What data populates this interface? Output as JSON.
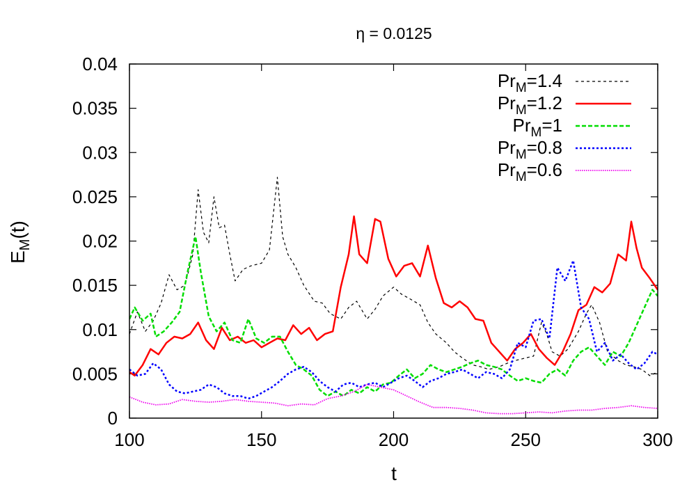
{
  "chart_data": {
    "type": "line",
    "title": "η = 0.0125",
    "xlabel": "t",
    "ylabel": {
      "base": "E",
      "sub": "M",
      "suffix": "(t)"
    },
    "xlim": [
      100,
      300
    ],
    "ylim": [
      0,
      0.04
    ],
    "xticks": [
      100,
      150,
      200,
      250,
      300
    ],
    "yticks": [
      0,
      0.005,
      0.01,
      0.015,
      0.02,
      0.025,
      0.03,
      0.035,
      0.04
    ],
    "xtick_labels": [
      "100",
      "150",
      "200",
      "250",
      "300"
    ],
    "ytick_labels": [
      "0",
      "0.005",
      "0.01",
      "0.015",
      "0.02",
      "0.025",
      "0.03",
      "0.035",
      "0.04"
    ],
    "grid": false,
    "legend_position": "top-right",
    "series": [
      {
        "name": "Pr_M=1.4",
        "legend": {
          "base": "Pr",
          "sub": "M",
          "suffix": "=1.4"
        },
        "color": "#000000",
        "dash": "short-dash",
        "x": [
          100,
          103,
          106,
          109,
          112,
          115,
          118,
          121,
          124,
          126,
          128,
          130,
          132,
          134,
          136,
          138,
          140,
          143,
          146,
          150,
          153,
          156,
          158,
          160,
          163,
          166,
          170,
          173,
          176,
          180,
          183,
          186,
          190,
          193,
          196,
          200,
          203,
          206,
          210,
          213,
          216,
          220,
          223,
          226,
          230,
          233,
          236,
          240,
          243,
          246,
          250,
          253,
          256,
          258,
          260,
          263,
          266,
          270,
          273,
          275,
          278,
          281,
          285,
          288,
          291,
          294,
          297,
          300
        ],
        "y": [
          0.0095,
          0.012,
          0.0098,
          0.011,
          0.013,
          0.0162,
          0.0145,
          0.015,
          0.0185,
          0.0258,
          0.021,
          0.0198,
          0.025,
          0.0215,
          0.0218,
          0.0185,
          0.0155,
          0.0168,
          0.0172,
          0.0175,
          0.019,
          0.0272,
          0.0205,
          0.0185,
          0.017,
          0.015,
          0.0132,
          0.013,
          0.0118,
          0.0112,
          0.0125,
          0.0132,
          0.0112,
          0.0123,
          0.0138,
          0.0148,
          0.014,
          0.0135,
          0.0128,
          0.0108,
          0.0095,
          0.0085,
          0.0075,
          0.0068,
          0.006,
          0.0058,
          0.0055,
          0.0058,
          0.0062,
          0.0065,
          0.0068,
          0.007,
          0.0108,
          0.0095,
          0.0075,
          0.007,
          0.0078,
          0.0098,
          0.0118,
          0.0128,
          0.0108,
          0.0075,
          0.0065,
          0.006,
          0.0058,
          0.0055,
          0.0048,
          0.0052
        ]
      },
      {
        "name": "Pr_M=1.2",
        "legend": {
          "base": "Pr",
          "sub": "M",
          "suffix": "=1.2"
        },
        "color": "#ff0000",
        "dash": "solid",
        "x": [
          100,
          102,
          105,
          108,
          111,
          114,
          117,
          120,
          123,
          126,
          129,
          132,
          135,
          138,
          141,
          144,
          147,
          150,
          153,
          156,
          159,
          162,
          165,
          168,
          171,
          174,
          177,
          180,
          183,
          185,
          187,
          190,
          193,
          195,
          198,
          201,
          204,
          207,
          210,
          213,
          216,
          219,
          222,
          225,
          228,
          231,
          234,
          237,
          240,
          243,
          246,
          249,
          252,
          255,
          258,
          261,
          264,
          267,
          270,
          273,
          276,
          279,
          282,
          285,
          288,
          290,
          292,
          294,
          297,
          300
        ],
        "y": [
          0.0052,
          0.0048,
          0.006,
          0.0078,
          0.0072,
          0.0085,
          0.0092,
          0.009,
          0.0095,
          0.0108,
          0.0088,
          0.0078,
          0.0102,
          0.0088,
          0.0092,
          0.0085,
          0.0088,
          0.008,
          0.0085,
          0.009,
          0.0088,
          0.0105,
          0.0095,
          0.0102,
          0.0088,
          0.0095,
          0.0098,
          0.0148,
          0.0185,
          0.0228,
          0.0185,
          0.0175,
          0.0225,
          0.0222,
          0.018,
          0.016,
          0.0172,
          0.0175,
          0.016,
          0.0195,
          0.0158,
          0.013,
          0.0125,
          0.0132,
          0.0125,
          0.0112,
          0.011,
          0.0085,
          0.0075,
          0.0065,
          0.0078,
          0.0085,
          0.0095,
          0.0078,
          0.0068,
          0.006,
          0.0075,
          0.0095,
          0.0122,
          0.0128,
          0.0148,
          0.0142,
          0.0152,
          0.0185,
          0.0178,
          0.0222,
          0.0192,
          0.017,
          0.0158,
          0.0145
        ]
      },
      {
        "name": "Pr_M=1",
        "legend": {
          "base": "Pr",
          "sub": "M",
          "suffix": "=1"
        },
        "color": "#00dd00",
        "dash": "dash",
        "x": [
          100,
          102,
          105,
          108,
          110,
          113,
          116,
          119,
          122,
          125,
          127,
          130,
          133,
          136,
          139,
          142,
          145,
          148,
          151,
          154,
          157,
          160,
          163,
          166,
          169,
          172,
          175,
          178,
          181,
          184,
          187,
          190,
          193,
          196,
          199,
          202,
          205,
          208,
          211,
          214,
          217,
          220,
          223,
          226,
          229,
          232,
          235,
          238,
          241,
          244,
          247,
          250,
          253,
          256,
          259,
          262,
          265,
          268,
          271,
          274,
          277,
          280,
          283,
          286,
          289,
          292,
          295,
          298,
          300
        ],
        "y": [
          0.0112,
          0.0125,
          0.011,
          0.0118,
          0.0092,
          0.0098,
          0.0108,
          0.012,
          0.0165,
          0.0205,
          0.0165,
          0.0115,
          0.0098,
          0.0108,
          0.0088,
          0.0085,
          0.0112,
          0.009,
          0.0085,
          0.0092,
          0.0092,
          0.0075,
          0.006,
          0.0055,
          0.0048,
          0.0032,
          0.0025,
          0.003,
          0.0025,
          0.0032,
          0.0028,
          0.0035,
          0.003,
          0.0038,
          0.004,
          0.0048,
          0.0055,
          0.0045,
          0.005,
          0.006,
          0.0055,
          0.0052,
          0.0055,
          0.0058,
          0.0062,
          0.0065,
          0.006,
          0.0058,
          0.0055,
          0.0048,
          0.0042,
          0.0045,
          0.0042,
          0.004,
          0.005,
          0.0055,
          0.0048,
          0.0065,
          0.0075,
          0.008,
          0.007,
          0.006,
          0.0075,
          0.007,
          0.0085,
          0.0105,
          0.0125,
          0.0145,
          0.0138
        ]
      },
      {
        "name": "Pr_M=0.8",
        "legend": {
          "base": "Pr",
          "sub": "M",
          "suffix": "=0.8"
        },
        "color": "#0000ff",
        "dash": "dot",
        "x": [
          100,
          103,
          106,
          109,
          112,
          115,
          118,
          121,
          124,
          127,
          130,
          133,
          136,
          139,
          142,
          145,
          148,
          151,
          154,
          157,
          160,
          163,
          166,
          169,
          172,
          175,
          178,
          181,
          184,
          187,
          190,
          193,
          196,
          199,
          202,
          205,
          208,
          211,
          214,
          217,
          220,
          223,
          226,
          229,
          232,
          235,
          238,
          241,
          244,
          247,
          250,
          253,
          256,
          259,
          262,
          265,
          268,
          271,
          274,
          277,
          280,
          283,
          286,
          289,
          292,
          295,
          298,
          300
        ],
        "y": [
          0.0055,
          0.0048,
          0.005,
          0.0062,
          0.0055,
          0.0038,
          0.003,
          0.0028,
          0.003,
          0.0032,
          0.0038,
          0.0035,
          0.0028,
          0.0025,
          0.0025,
          0.0022,
          0.0025,
          0.003,
          0.0035,
          0.0042,
          0.005,
          0.0055,
          0.0058,
          0.0052,
          0.0042,
          0.0035,
          0.003,
          0.0038,
          0.004,
          0.0035,
          0.0038,
          0.004,
          0.0035,
          0.004,
          0.0045,
          0.0048,
          0.0042,
          0.0035,
          0.0042,
          0.0045,
          0.005,
          0.0052,
          0.0055,
          0.005,
          0.0045,
          0.0052,
          0.005,
          0.0045,
          0.0055,
          0.0085,
          0.008,
          0.011,
          0.0112,
          0.009,
          0.017,
          0.0155,
          0.0178,
          0.0125,
          0.0112,
          0.0075,
          0.0085,
          0.0065,
          0.0072,
          0.0062,
          0.0055,
          0.0062,
          0.0075,
          0.0072
        ]
      },
      {
        "name": "Pr_M=0.6",
        "legend": {
          "base": "Pr",
          "sub": "M",
          "suffix": "=0.6"
        },
        "color": "#ee00ee",
        "dash": "fine-dot",
        "x": [
          100,
          105,
          110,
          115,
          120,
          125,
          130,
          135,
          140,
          145,
          150,
          155,
          160,
          165,
          170,
          175,
          180,
          185,
          190,
          195,
          200,
          205,
          210,
          215,
          220,
          225,
          230,
          235,
          240,
          245,
          250,
          255,
          260,
          265,
          270,
          275,
          280,
          285,
          290,
          295,
          300
        ],
        "y": [
          0.0024,
          0.0018,
          0.0015,
          0.0016,
          0.0021,
          0.0019,
          0.0018,
          0.0019,
          0.0021,
          0.0019,
          0.0018,
          0.0017,
          0.0014,
          0.0016,
          0.0015,
          0.0022,
          0.0025,
          0.003,
          0.0038,
          0.0035,
          0.0032,
          0.0025,
          0.0018,
          0.0012,
          0.0012,
          0.0011,
          0.0009,
          0.0006,
          0.0005,
          0.0005,
          0.0006,
          0.0007,
          0.0006,
          0.0008,
          0.0009,
          0.0009,
          0.0011,
          0.0012,
          0.0014,
          0.0012,
          0.0011
        ]
      }
    ]
  }
}
